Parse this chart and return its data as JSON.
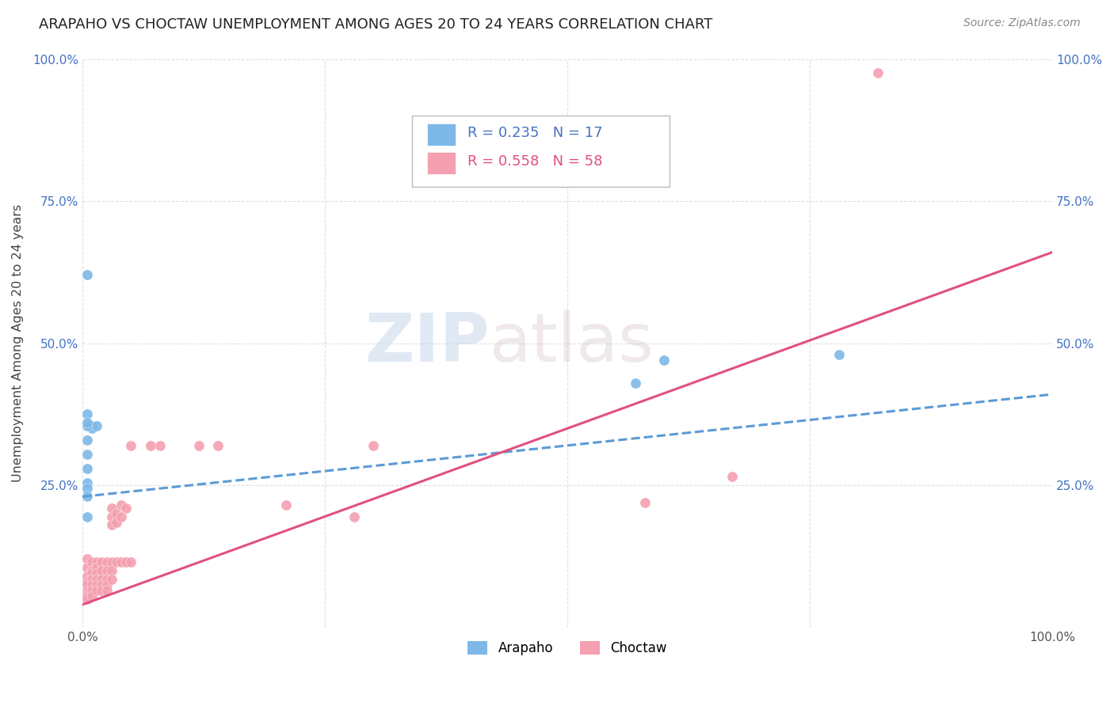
{
  "title": "ARAPAHO VS CHOCTAW UNEMPLOYMENT AMONG AGES 20 TO 24 YEARS CORRELATION CHART",
  "source": "Source: ZipAtlas.com",
  "ylabel": "Unemployment Among Ages 20 to 24 years",
  "xlim": [
    0,
    1.0
  ],
  "ylim": [
    0,
    1.0
  ],
  "xticks": [
    0.0,
    0.25,
    0.5,
    0.75,
    1.0
  ],
  "yticks": [
    0.0,
    0.25,
    0.5,
    0.75,
    1.0
  ],
  "xlabels": [
    "0.0%",
    "",
    "",
    "",
    "100.0%"
  ],
  "ylabels": [
    "",
    "25.0%",
    "50.0%",
    "75.0%",
    "100.0%"
  ],
  "arapaho_color": "#7db8e8",
  "choctaw_color": "#f4a0b0",
  "arapaho_R": 0.235,
  "arapaho_N": 17,
  "choctaw_R": 0.558,
  "choctaw_N": 58,
  "arapaho_line_color": "#5b9bd5",
  "choctaw_line_color": "#e05080",
  "arapaho_line_intercept": 0.23,
  "arapaho_line_slope": 0.18,
  "choctaw_line_intercept": 0.04,
  "choctaw_line_slope": 0.62,
  "arapaho_points": [
    [
      0.005,
      0.62
    ],
    [
      0.01,
      0.355
    ],
    [
      0.01,
      0.35
    ],
    [
      0.015,
      0.355
    ],
    [
      0.005,
      0.355
    ],
    [
      0.005,
      0.375
    ],
    [
      0.005,
      0.36
    ],
    [
      0.005,
      0.33
    ],
    [
      0.005,
      0.305
    ],
    [
      0.005,
      0.28
    ],
    [
      0.005,
      0.255
    ],
    [
      0.005,
      0.245
    ],
    [
      0.005,
      0.23
    ],
    [
      0.005,
      0.195
    ],
    [
      0.6,
      0.47
    ],
    [
      0.78,
      0.48
    ],
    [
      0.57,
      0.43
    ]
  ],
  "choctaw_points": [
    [
      0.005,
      0.12
    ],
    [
      0.005,
      0.105
    ],
    [
      0.005,
      0.09
    ],
    [
      0.005,
      0.08
    ],
    [
      0.005,
      0.075
    ],
    [
      0.005,
      0.065
    ],
    [
      0.005,
      0.06
    ],
    [
      0.005,
      0.055
    ],
    [
      0.005,
      0.05
    ],
    [
      0.01,
      0.115
    ],
    [
      0.01,
      0.1
    ],
    [
      0.01,
      0.095
    ],
    [
      0.01,
      0.085
    ],
    [
      0.01,
      0.075
    ],
    [
      0.01,
      0.065
    ],
    [
      0.01,
      0.055
    ],
    [
      0.015,
      0.115
    ],
    [
      0.015,
      0.105
    ],
    [
      0.015,
      0.095
    ],
    [
      0.015,
      0.085
    ],
    [
      0.015,
      0.075
    ],
    [
      0.015,
      0.065
    ],
    [
      0.02,
      0.115
    ],
    [
      0.02,
      0.1
    ],
    [
      0.02,
      0.085
    ],
    [
      0.02,
      0.075
    ],
    [
      0.02,
      0.065
    ],
    [
      0.025,
      0.115
    ],
    [
      0.025,
      0.1
    ],
    [
      0.025,
      0.085
    ],
    [
      0.025,
      0.075
    ],
    [
      0.025,
      0.065
    ],
    [
      0.03,
      0.21
    ],
    [
      0.03,
      0.195
    ],
    [
      0.03,
      0.18
    ],
    [
      0.03,
      0.115
    ],
    [
      0.03,
      0.1
    ],
    [
      0.03,
      0.085
    ],
    [
      0.035,
      0.2
    ],
    [
      0.035,
      0.185
    ],
    [
      0.035,
      0.115
    ],
    [
      0.04,
      0.215
    ],
    [
      0.04,
      0.195
    ],
    [
      0.04,
      0.115
    ],
    [
      0.045,
      0.21
    ],
    [
      0.045,
      0.115
    ],
    [
      0.05,
      0.32
    ],
    [
      0.05,
      0.115
    ],
    [
      0.07,
      0.32
    ],
    [
      0.08,
      0.32
    ],
    [
      0.12,
      0.32
    ],
    [
      0.14,
      0.32
    ],
    [
      0.21,
      0.215
    ],
    [
      0.3,
      0.32
    ],
    [
      0.28,
      0.195
    ],
    [
      0.67,
      0.265
    ],
    [
      0.82,
      0.975
    ],
    [
      0.58,
      0.22
    ]
  ],
  "watermark_zip": "ZIP",
  "watermark_atlas": "atlas",
  "background_color": "#ffffff",
  "grid_color": "#dddddd"
}
